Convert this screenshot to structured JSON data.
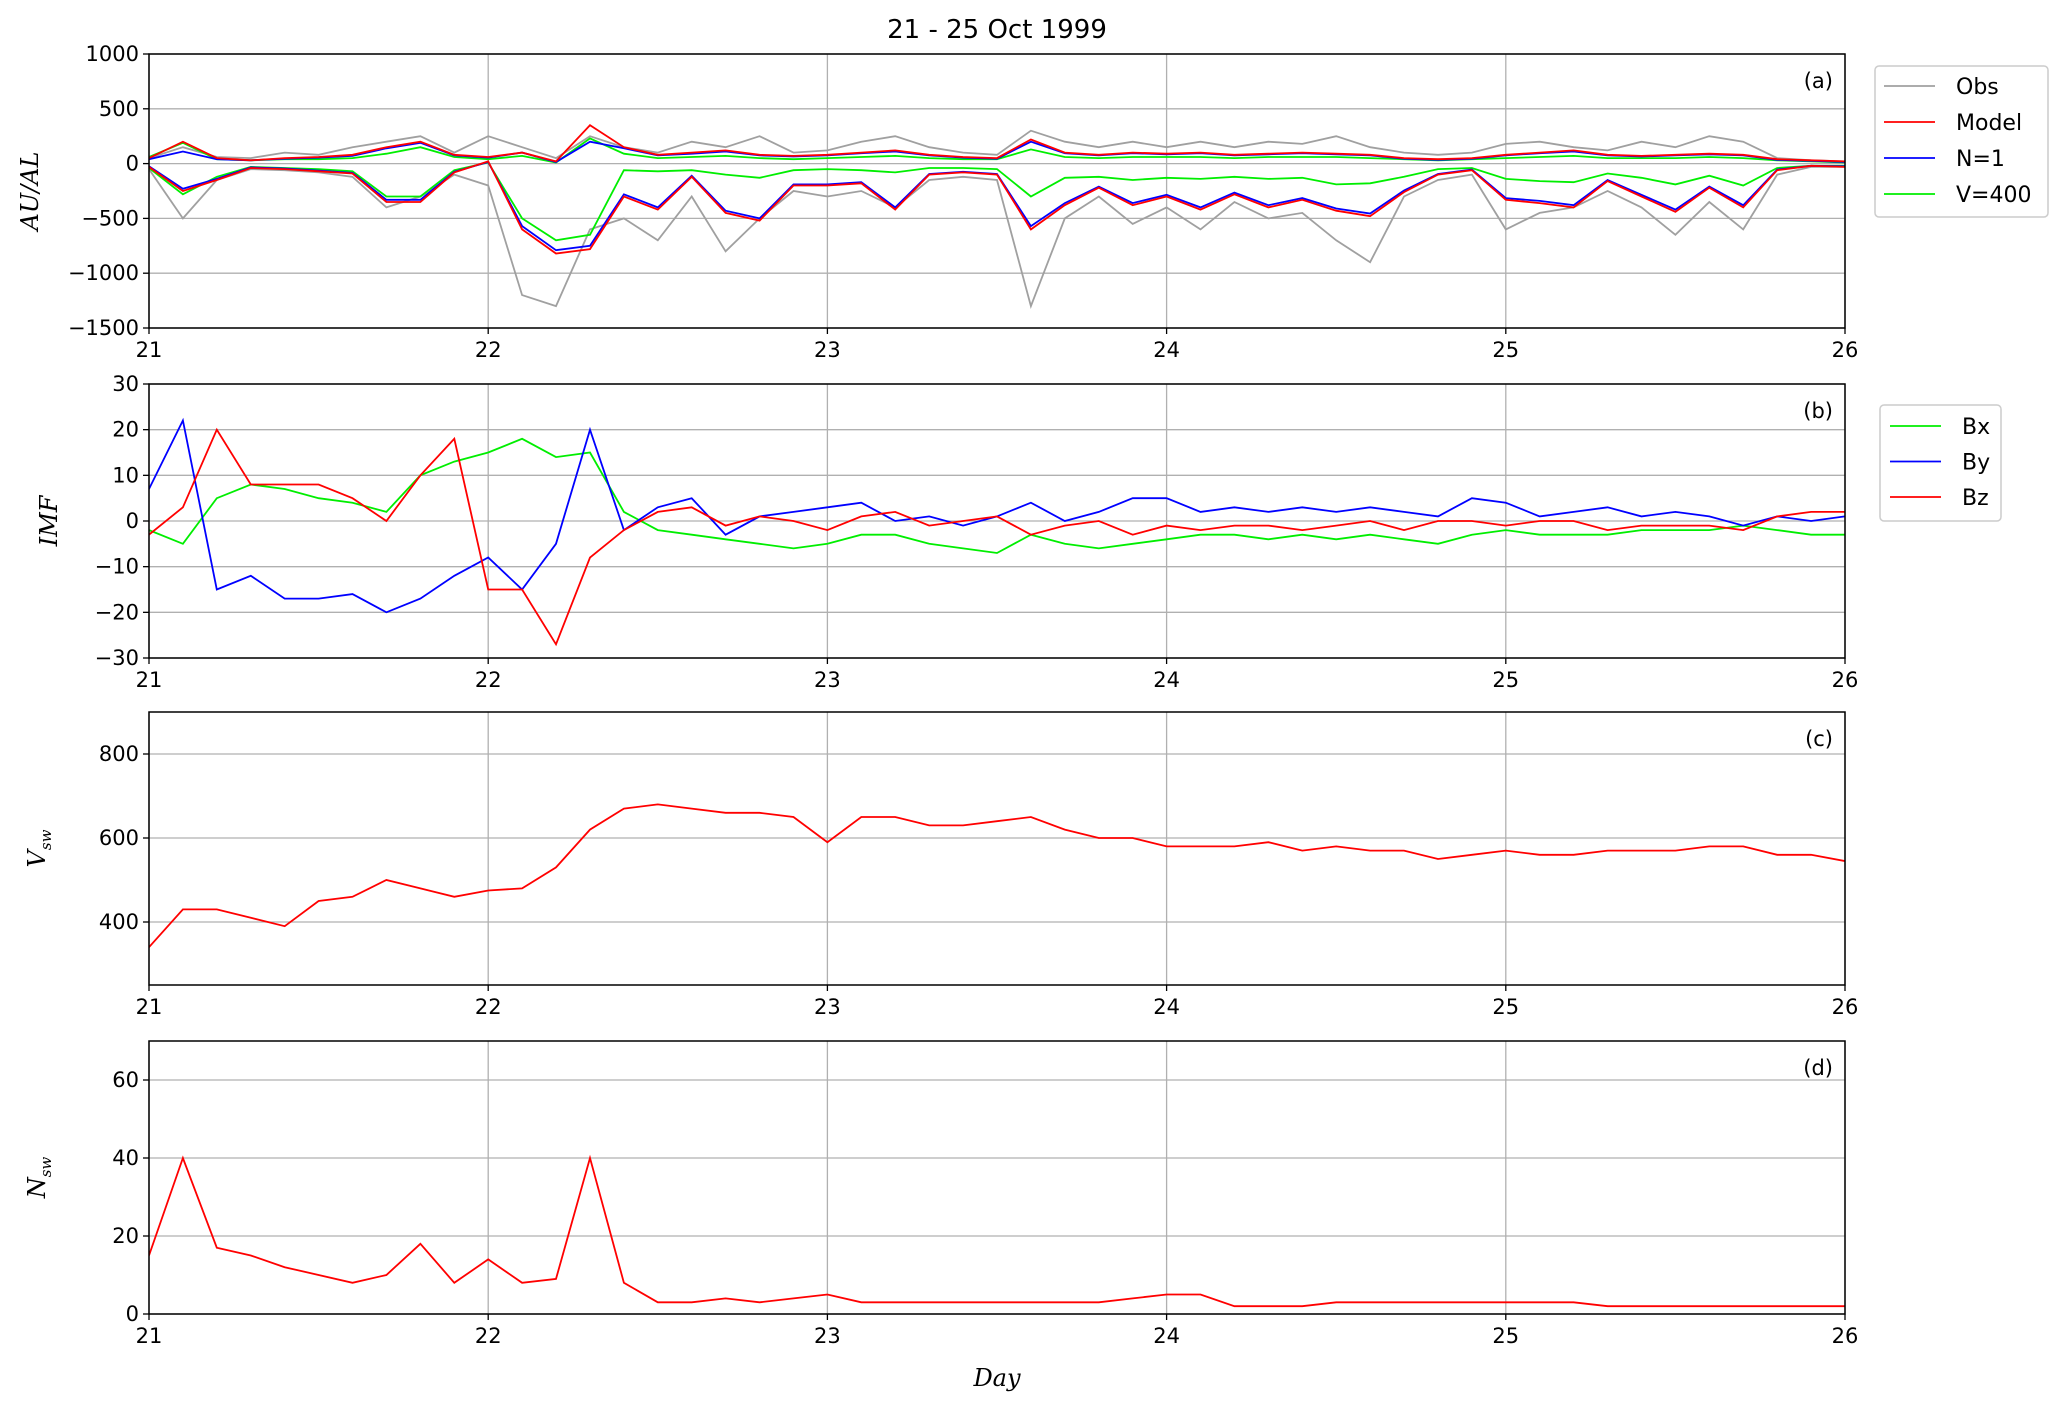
{
  "chart_data": [
    {
      "type": "line",
      "title": "21 - 25 Oct 1999",
      "panel_label": "(a)",
      "ylabel": "AU/AL",
      "xlabel": "",
      "xlim": [
        21,
        26
      ],
      "ylim": [
        -1500,
        1000
      ],
      "xticks": [
        "21",
        "22",
        "23",
        "24",
        "25",
        "26"
      ],
      "yticks": [
        -1500,
        -1000,
        -500,
        0,
        500,
        1000
      ],
      "grid": true,
      "legend_position": "outside-right",
      "legend": [
        {
          "name": "Obs",
          "color": "#a0a0a0"
        },
        {
          "name": "Model",
          "color": "#ff0000"
        },
        {
          "name": "N=1",
          "color": "#0000ff"
        },
        {
          "name": "V=400",
          "color": "#00ee00"
        }
      ],
      "series": [
        {
          "name": "Obs",
          "color": "#a0a0a0",
          "values": [
            -50,
            -500,
            -150,
            -50,
            -60,
            -80,
            -120,
            -400,
            -300,
            -100,
            -200,
            -1200,
            -1300,
            -600,
            -500,
            -700,
            -300,
            -800,
            -500,
            -250,
            -300,
            -250,
            -400,
            -150,
            -120,
            -150,
            -1300,
            -500,
            -300,
            -550,
            -400,
            -600,
            -350,
            -500,
            -450,
            -700,
            -900,
            -300,
            -150,
            -100,
            -600,
            -450,
            -400,
            -250,
            -400,
            -650,
            -350,
            -600,
            -100,
            -30,
            -30
          ]
        },
        {
          "name": "Obs",
          "color": "#a0a0a0",
          "values": [
            50,
            150,
            60,
            50,
            100,
            80,
            150,
            200,
            250,
            100,
            250,
            150,
            50,
            250,
            150,
            100,
            200,
            150,
            250,
            100,
            120,
            200,
            250,
            150,
            100,
            80,
            300,
            200,
            150,
            200,
            150,
            200,
            150,
            200,
            180,
            250,
            150,
            100,
            80,
            100,
            180,
            200,
            150,
            120,
            200,
            150,
            250,
            200,
            50,
            30,
            20
          ]
        },
        {
          "name": "V=400",
          "color": "#00ee00",
          "values": [
            -40,
            -280,
            -120,
            -30,
            -40,
            -50,
            -70,
            -300,
            -300,
            -60,
            10,
            -500,
            -700,
            -650,
            -60,
            -70,
            -60,
            -100,
            -130,
            -60,
            -50,
            -60,
            -80,
            -40,
            -40,
            -50,
            -300,
            -130,
            -120,
            -150,
            -130,
            -140,
            -120,
            -140,
            -130,
            -190,
            -180,
            -120,
            -50,
            -40,
            -140,
            -160,
            -170,
            -90,
            -130,
            -190,
            -110,
            -200,
            -40,
            -20,
            -20
          ]
        },
        {
          "name": "V=400",
          "color": "#00ee00",
          "values": [
            60,
            190,
            40,
            30,
            40,
            40,
            50,
            90,
            150,
            60,
            40,
            70,
            10,
            230,
            90,
            50,
            60,
            70,
            50,
            40,
            50,
            60,
            70,
            50,
            40,
            40,
            130,
            60,
            50,
            60,
            60,
            60,
            50,
            60,
            60,
            60,
            50,
            40,
            30,
            40,
            50,
            60,
            70,
            50,
            50,
            50,
            60,
            50,
            30,
            20,
            10
          ]
        },
        {
          "name": "N=1",
          "color": "#0000ff",
          "values": [
            -25,
            -230,
            -140,
            -35,
            -45,
            -65,
            -85,
            -330,
            -330,
            -75,
            15,
            -570,
            -790,
            -750,
            -280,
            -400,
            -110,
            -430,
            -500,
            -190,
            -190,
            -170,
            -400,
            -95,
            -75,
            -95,
            -570,
            -360,
            -210,
            -360,
            -285,
            -400,
            -265,
            -380,
            -315,
            -410,
            -455,
            -245,
            -95,
            -55,
            -315,
            -340,
            -380,
            -150,
            -285,
            -420,
            -210,
            -380,
            -55,
            -20,
            -25
          ]
        },
        {
          "name": "N=1",
          "color": "#0000ff",
          "values": [
            40,
            110,
            40,
            30,
            45,
            55,
            70,
            140,
            190,
            75,
            55,
            100,
            15,
            200,
            140,
            75,
            90,
            110,
            75,
            65,
            75,
            95,
            110,
            75,
            55,
            45,
            200,
            95,
            75,
            95,
            85,
            95,
            75,
            85,
            95,
            85,
            75,
            45,
            35,
            45,
            75,
            95,
            110,
            75,
            65,
            75,
            85,
            75,
            35,
            25,
            15
          ]
        },
        {
          "name": "Model",
          "color": "#ff0000",
          "values": [
            -30,
            -250,
            -150,
            -40,
            -50,
            -70,
            -90,
            -350,
            -350,
            -80,
            20,
            -600,
            -820,
            -780,
            -300,
            -420,
            -120,
            -450,
            -520,
            -200,
            -200,
            -180,
            -420,
            -100,
            -80,
            -100,
            -600,
            -380,
            -220,
            -380,
            -300,
            -420,
            -280,
            -400,
            -330,
            -430,
            -480,
            -260,
            -100,
            -60,
            -330,
            -360,
            -400,
            -160,
            -300,
            -440,
            -220,
            -400,
            -60,
            -20,
            -30
          ]
        },
        {
          "name": "Model",
          "color": "#ff0000",
          "values": [
            50,
            200,
            50,
            30,
            50,
            60,
            80,
            150,
            200,
            80,
            60,
            100,
            20,
            350,
            150,
            80,
            100,
            120,
            80,
            70,
            80,
            100,
            120,
            80,
            60,
            50,
            220,
            100,
            80,
            100,
            90,
            100,
            80,
            90,
            100,
            90,
            80,
            50,
            40,
            50,
            80,
            100,
            120,
            80,
            70,
            80,
            90,
            80,
            40,
            30,
            20
          ]
        }
      ]
    },
    {
      "type": "line",
      "panel_label": "(b)",
      "ylabel": "IMF",
      "xlim": [
        21,
        26
      ],
      "ylim": [
        -30,
        30
      ],
      "xticks": [
        "21",
        "22",
        "23",
        "24",
        "25",
        "26"
      ],
      "yticks": [
        -30,
        -20,
        -10,
        0,
        10,
        20,
        30
      ],
      "grid": true,
      "legend_position": "outside-right",
      "legend": [
        {
          "name": "Bx",
          "color": "#00ee00"
        },
        {
          "name": "By",
          "color": "#0000ff"
        },
        {
          "name": "Bz",
          "color": "#ff0000"
        }
      ],
      "series": [
        {
          "name": "Bx",
          "color": "#00ee00",
          "values": [
            -2,
            -5,
            5,
            8,
            7,
            5,
            4,
            2,
            10,
            13,
            15,
            18,
            14,
            15,
            2,
            -2,
            -3,
            -4,
            -5,
            -6,
            -5,
            -3,
            -3,
            -5,
            -6,
            -7,
            -3,
            -5,
            -6,
            -5,
            -4,
            -3,
            -3,
            -4,
            -3,
            -4,
            -3,
            -4,
            -5,
            -3,
            -2,
            -3,
            -3,
            -3,
            -2,
            -2,
            -2,
            -1,
            -2,
            -3,
            -3
          ]
        },
        {
          "name": "By",
          "color": "#0000ff",
          "values": [
            7,
            22,
            -15,
            -12,
            -17,
            -17,
            -16,
            -20,
            -17,
            -12,
            -8,
            -15,
            -5,
            20,
            -2,
            3,
            5,
            -3,
            1,
            2,
            3,
            4,
            0,
            1,
            -1,
            1,
            4,
            0,
            2,
            5,
            5,
            2,
            3,
            2,
            3,
            2,
            3,
            2,
            1,
            5,
            4,
            1,
            2,
            3,
            1,
            2,
            1,
            -1,
            1,
            0,
            1
          ]
        },
        {
          "name": "Bz",
          "color": "#ff0000",
          "values": [
            -3,
            3,
            20,
            8,
            8,
            8,
            5,
            0,
            10,
            18,
            -15,
            -15,
            -27,
            -8,
            -2,
            2,
            3,
            -1,
            1,
            0,
            -2,
            1,
            2,
            -1,
            0,
            1,
            -3,
            -1,
            0,
            -3,
            -1,
            -2,
            -1,
            -1,
            -2,
            -1,
            0,
            -2,
            0,
            0,
            -1,
            0,
            0,
            -2,
            -1,
            -1,
            -1,
            -2,
            1,
            2,
            2
          ]
        }
      ]
    },
    {
      "type": "line",
      "panel_label": "(c)",
      "ylabel": "V",
      "ylabel_sub": "sw",
      "xlim": [
        21,
        26
      ],
      "ylim": [
        250,
        900
      ],
      "xticks": [
        "21",
        "22",
        "23",
        "24",
        "25",
        "26"
      ],
      "yticks": [
        400,
        600,
        800
      ],
      "grid": true,
      "series": [
        {
          "color": "#ff0000",
          "values": [
            340,
            430,
            430,
            410,
            390,
            450,
            460,
            500,
            480,
            460,
            475,
            480,
            530,
            620,
            670,
            680,
            670,
            660,
            660,
            650,
            590,
            650,
            650,
            630,
            630,
            640,
            650,
            620,
            600,
            600,
            580,
            580,
            580,
            590,
            570,
            580,
            570,
            570,
            550,
            560,
            570,
            560,
            560,
            570,
            570,
            570,
            580,
            580,
            560,
            560,
            545
          ]
        }
      ]
    },
    {
      "type": "line",
      "panel_label": "(d)",
      "ylabel": "N",
      "ylabel_sub": "sw",
      "xlabel": "Day",
      "xlim": [
        21,
        26
      ],
      "ylim": [
        0,
        70
      ],
      "xticks": [
        "21",
        "22",
        "23",
        "24",
        "25",
        "26"
      ],
      "yticks": [
        0,
        20,
        40,
        60
      ],
      "grid": true,
      "series": [
        {
          "color": "#ff0000",
          "values": [
            15,
            40,
            17,
            15,
            12,
            10,
            8,
            10,
            18,
            8,
            14,
            8,
            9,
            40,
            8,
            3,
            3,
            4,
            3,
            4,
            5,
            3,
            3,
            3,
            3,
            3,
            3,
            3,
            3,
            4,
            5,
            5,
            2,
            2,
            2,
            3,
            3,
            3,
            3,
            3,
            3,
            3,
            3,
            2,
            2,
            2,
            2,
            2,
            2,
            2,
            2
          ]
        }
      ]
    }
  ],
  "x_values": [
    21.0,
    21.1,
    21.2,
    21.3,
    21.4,
    21.5,
    21.6,
    21.7,
    21.8,
    21.9,
    22.0,
    22.1,
    22.2,
    22.3,
    22.4,
    22.5,
    22.6,
    22.7,
    22.8,
    22.9,
    23.0,
    23.1,
    23.2,
    23.3,
    23.4,
    23.5,
    23.6,
    23.7,
    23.8,
    23.9,
    24.0,
    24.1,
    24.2,
    24.3,
    24.4,
    24.5,
    24.6,
    24.7,
    24.8,
    24.9,
    25.0,
    25.1,
    25.2,
    25.3,
    25.4,
    25.5,
    25.6,
    25.7,
    25.8,
    25.9,
    26.0
  ]
}
